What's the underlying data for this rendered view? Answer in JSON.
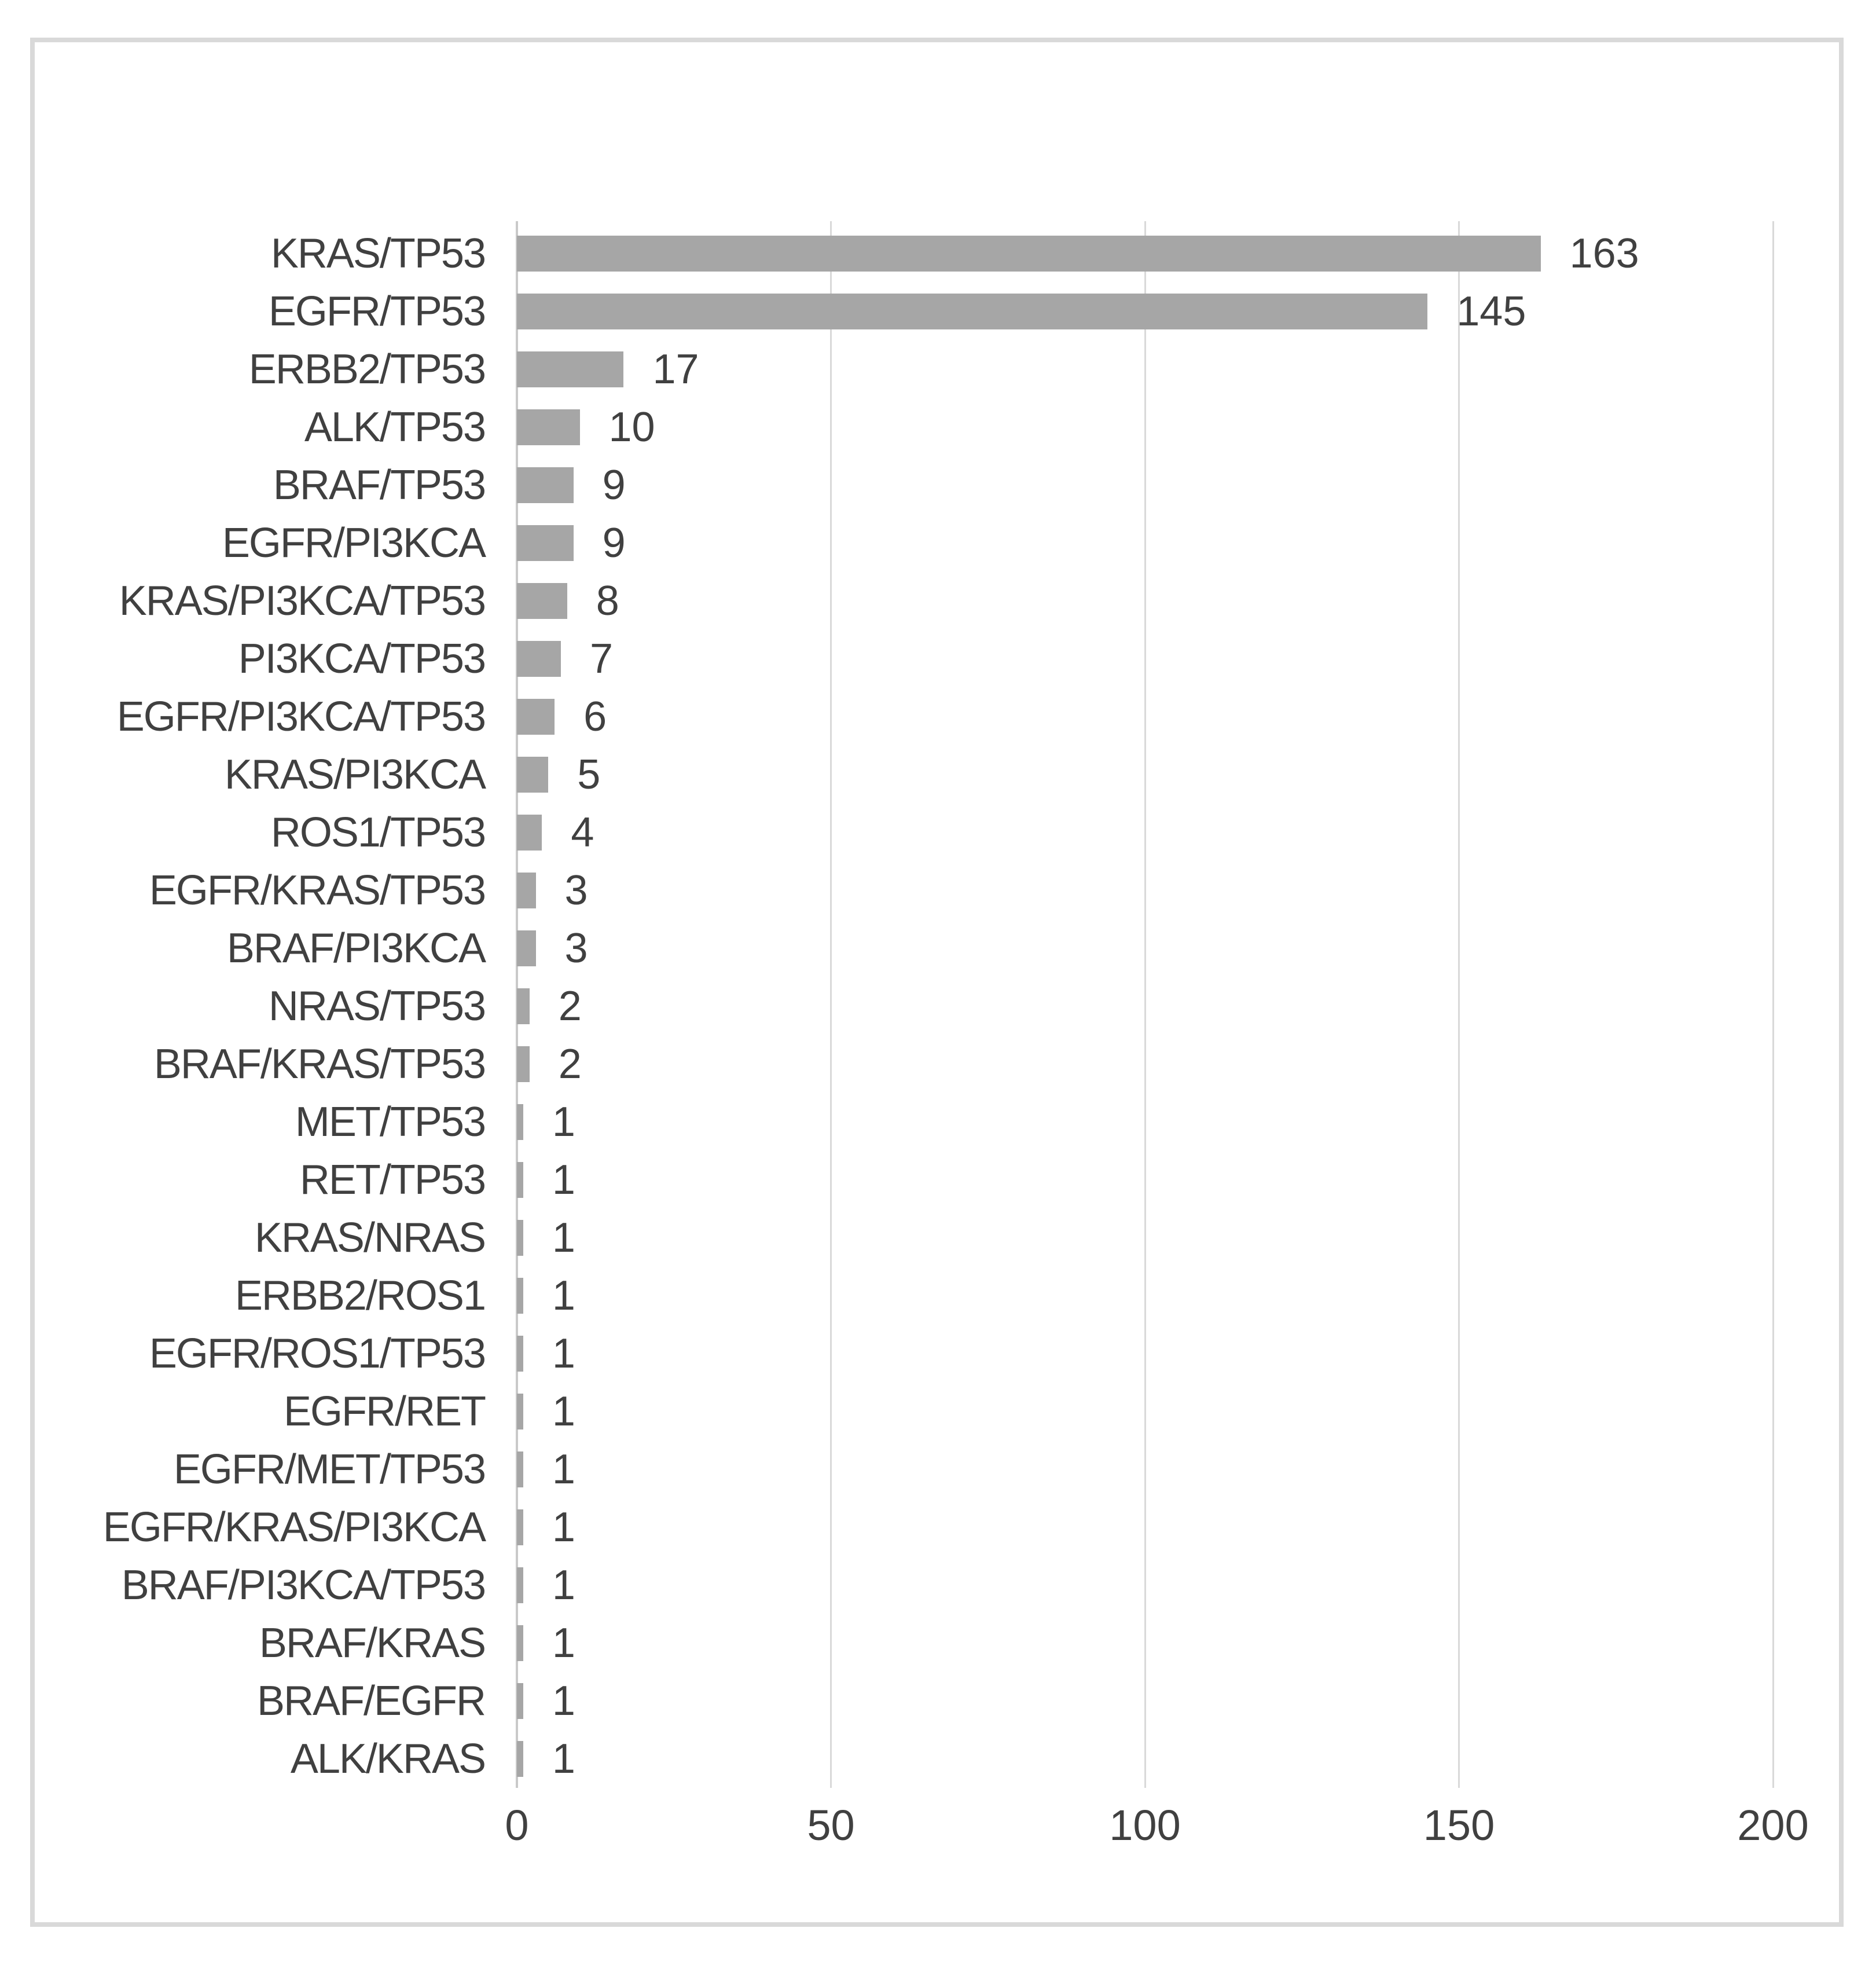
{
  "chart_data": {
    "type": "bar",
    "orientation": "horizontal",
    "title": "",
    "xlabel": "",
    "ylabel": "",
    "xlim": [
      0,
      200
    ],
    "xticks": [
      0,
      50,
      100,
      150,
      200
    ],
    "grid": true,
    "legend_position": "none",
    "data_labels": true,
    "categories": [
      "KRAS/TP53",
      "EGFR/TP53",
      "ERBB2/TP53",
      "ALK/TP53",
      "BRAF/TP53",
      "EGFR/PI3KCA",
      "KRAS/PI3KCA/TP53",
      "PI3KCA/TP53",
      "EGFR/PI3KCA/TP53",
      "KRAS/PI3KCA",
      "ROS1/TP53",
      "EGFR/KRAS/TP53",
      "BRAF/PI3KCA",
      "NRAS/TP53",
      "BRAF/KRAS/TP53",
      "MET/TP53",
      "RET/TP53",
      "KRAS/NRAS",
      "ERBB2/ROS1",
      "EGFR/ROS1/TP53",
      "EGFR/RET",
      "EGFR/MET/TP53",
      "EGFR/KRAS/PI3KCA",
      "BRAF/PI3KCA/TP53",
      "BRAF/KRAS",
      "BRAF/EGFR",
      "ALK/KRAS"
    ],
    "values": [
      163,
      145,
      17,
      10,
      9,
      9,
      8,
      7,
      6,
      5,
      4,
      3,
      3,
      2,
      2,
      1,
      1,
      1,
      1,
      1,
      1,
      1,
      1,
      1,
      1,
      1,
      1
    ],
    "colors": {
      "bar_fill": "#a6a6a6",
      "gridline": "#d9d9d9",
      "axis_line": "#c9c9c9",
      "text": "#404040",
      "frame_border": "#d9d9d9",
      "background": "#ffffff"
    }
  }
}
